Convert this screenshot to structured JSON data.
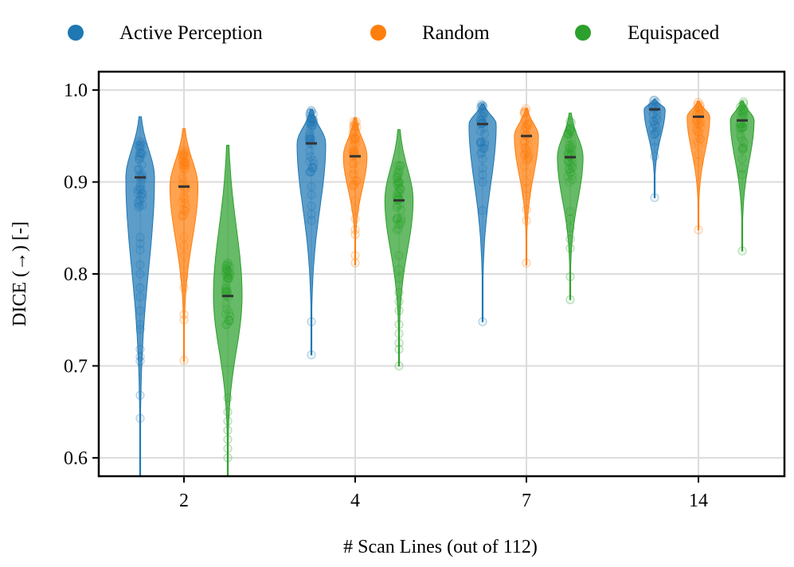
{
  "chart_data": {
    "type": "violin",
    "xlabel": "# Scan Lines (out of 112)",
    "ylabel": "DICE (→) [-]",
    "ylim": [
      0.58,
      1.02
    ],
    "yticks": [
      0.6,
      0.7,
      0.8,
      0.9,
      1.0
    ],
    "ytick_labels": [
      "0.6",
      "0.7",
      "0.8",
      "0.9",
      "1.0"
    ],
    "categories": [
      "2",
      "4",
      "7",
      "14"
    ],
    "grid": true,
    "legend_position": "top",
    "series": [
      {
        "name": "Active Perception",
        "color": "#1f77b4",
        "medians": [
          0.905,
          0.942,
          0.963,
          0.979
        ],
        "min": [
          0.58,
          0.712,
          0.748,
          0.883
        ],
        "max": [
          0.971,
          0.979,
          0.985,
          0.99
        ],
        "outliers": [
          [
            0.643,
            0.668,
            0.705,
            0.71,
            0.718,
            0.74,
            0.745,
            0.76,
            0.775,
            0.785,
            0.8,
            0.81,
            0.826,
            0.833,
            0.84
          ],
          [
            0.712,
            0.748,
            0.858,
            0.865,
            0.874,
            0.886,
            0.895
          ],
          [
            0.748,
            0.869,
            0.9,
            0.908,
            0.915,
            0.925
          ],
          [
            0.883,
            0.928,
            0.938,
            0.944,
            0.952
          ]
        ]
      },
      {
        "name": "Random",
        "color": "#ff7f0e",
        "medians": [
          0.895,
          0.928,
          0.95,
          0.971
        ],
        "min": [
          0.705,
          0.81,
          0.81,
          0.848
        ],
        "max": [
          0.958,
          0.97,
          0.98,
          0.988
        ],
        "outliers": [
          [
            0.706,
            0.75,
            0.756,
            0.785,
            0.797,
            0.81,
            0.82,
            0.83,
            0.84
          ],
          [
            0.812,
            0.82,
            0.843,
            0.848,
            0.86,
            0.87,
            0.88
          ],
          [
            0.812,
            0.858,
            0.87,
            0.885,
            0.893,
            0.9,
            0.91
          ],
          [
            0.848,
            0.922,
            0.93,
            0.94,
            0.95
          ]
        ]
      },
      {
        "name": "Equispaced",
        "color": "#2ca02c",
        "medians": [
          0.776,
          0.88,
          0.927,
          0.967
        ],
        "min": [
          0.58,
          0.7,
          0.772,
          0.825
        ],
        "max": [
          0.94,
          0.957,
          0.975,
          0.988
        ],
        "outliers": [
          [
            0.6,
            0.61,
            0.62,
            0.63,
            0.64,
            0.65,
            0.665
          ],
          [
            0.7,
            0.718,
            0.725,
            0.735,
            0.745,
            0.76,
            0.77,
            0.78,
            0.795,
            0.805,
            0.82
          ],
          [
            0.772,
            0.797,
            0.828,
            0.838,
            0.85,
            0.86,
            0.868
          ],
          [
            0.825,
            0.908,
            0.915,
            0.925,
            0.935,
            0.945
          ]
        ]
      }
    ]
  }
}
